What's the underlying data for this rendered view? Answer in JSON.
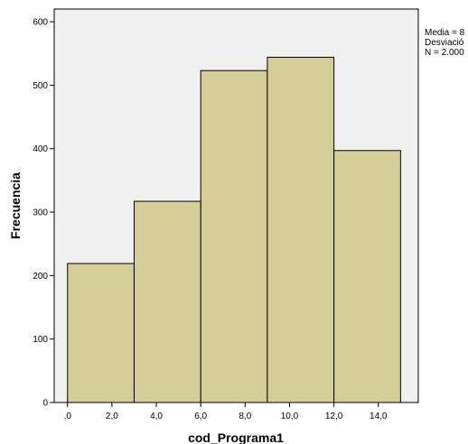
{
  "chart_data": {
    "type": "bar",
    "subtype": "histogram",
    "bins": [
      {
        "x0": 0,
        "x1": 3,
        "value": 219
      },
      {
        "x0": 3,
        "x1": 6,
        "value": 317
      },
      {
        "x0": 6,
        "x1": 9,
        "value": 523
      },
      {
        "x0": 9,
        "x1": 12,
        "value": 544
      },
      {
        "x0": 12,
        "x1": 15,
        "value": 397
      }
    ],
    "xlabel": "cod_Programa1",
    "ylabel": "Frecuencia",
    "xlim": [
      -0.6,
      15.8
    ],
    "ylim": [
      0,
      620
    ],
    "xticks": [
      0,
      2,
      4,
      6,
      8,
      10,
      12,
      14
    ],
    "xtick_labels": [
      ",0",
      "2,0",
      "4,0",
      "6,0",
      "8,0",
      "10,0",
      "12,0",
      "14,0"
    ],
    "yticks": [
      0,
      100,
      200,
      300,
      400,
      500,
      600
    ],
    "ytick_labels": [
      "0",
      "100",
      "200",
      "300",
      "400",
      "500",
      "600"
    ],
    "grid": false,
    "bar_color": "#d3ce98",
    "plot_background": "#f0f0f0",
    "stats": [
      "Media = 8",
      "Desviació",
      "N = 2.000"
    ]
  }
}
